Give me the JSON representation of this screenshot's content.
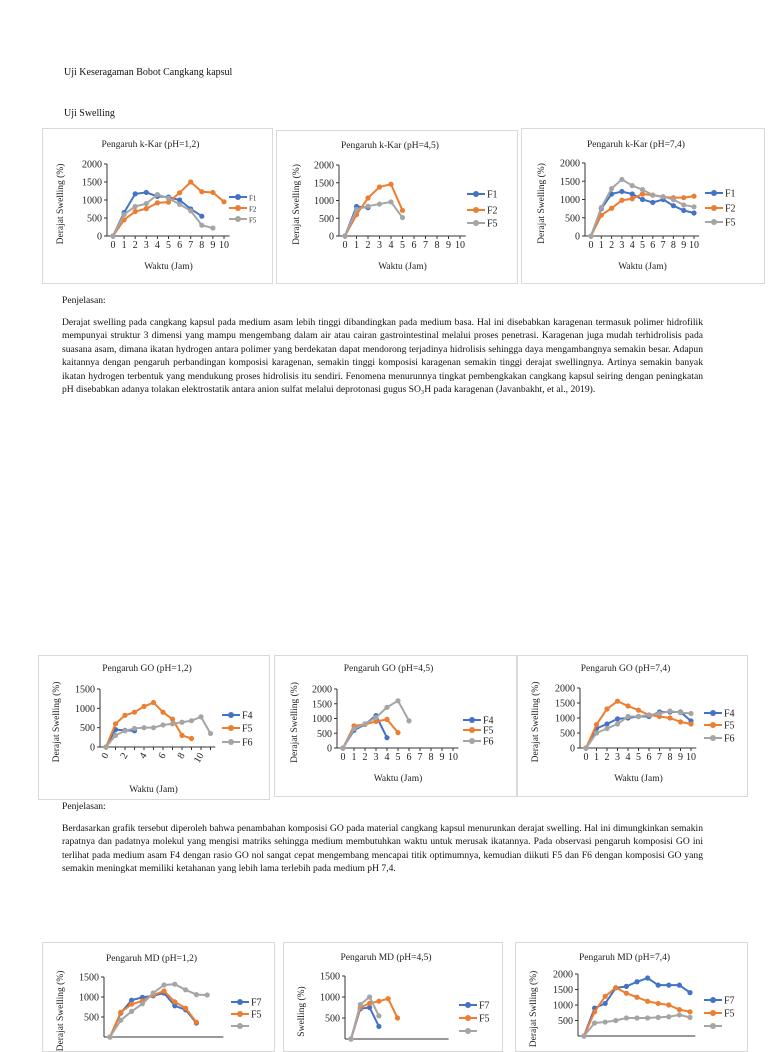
{
  "document": {
    "heading_uniformity": "Uji Keseragaman Bobot Cangkang kapsul",
    "heading_swelling": "Uji Swelling",
    "explanation_label_1": "Penjelasan:",
    "paragraph_1": "Derajat swelling pada cangkang kapsul pada medium asam lebih tinggi dibandingkan pada medium basa. Hal ini disebabkan karagenan termasuk polimer hidrofilik mempunyai struktur 3 dimensi yang mampu mengembang dalam air atau cairan gastrointestinal melalui proses penetrasi. Karagenan juga mudah terhidrolisis pada suasana asam, dimana ikatan hydrogen antara polimer yang berdekatan dapat mendorong terjadinya hidrolisis sehingga daya mengambangnya semakin besar. Adapun kaitannya dengan pengaruh perbandingan komposisi karagenan, semakin tinggi komposisi karagenan semakin tinggi derajat swellingnya. Artinya semakin banyak ikatan hydrogen terbentuk yang mendukung proses hidrolisis itu sendiri. Fenomena menurunnya tingkat pembengkakan cangkang kapsul seiring dengan peningkatan pH disebabkan adanya tolakan elektrostatik antara anion sulfat melalui deprotonasi gugus SO₃H pada karagenan (Javanbakht, et al., 2019).",
    "explanation_label_2": "Penjelasan:",
    "paragraph_2": "Berdasarkan grafik tersebut diperoleh bahwa penambahan komposisi GO pada material cangkang kapsul menurunkan derajat swelling. Hal ini dimungkinkan semakin rapatnya dan padatnya molekul yang mengisi matriks sehingga medium membutuhkan waktu untuk merusak ikatannya. Pada observasi pengaruh komposisi GO ini terlihat pada medium asam F4 dengan rasio GO nol sangat cepat mengembang mencapai titik optimumnya, kemudian diikuti F5 dan F6 dengan komposisi GO yang semakin meningkat memiliki ketahanan yang lebih lama terlebih pada medium pH 7,4."
  },
  "colors": {
    "blue": "#4472c4",
    "orange": "#ed7d31",
    "gray": "#a5a5a5"
  },
  "chart_data": [
    {
      "type": "line",
      "title": "Pengaruh k-Kar (pH=1,2)",
      "xlabel": "Waktu (Jam)",
      "ylabel": "Derajat Swelling (%)",
      "ylim": [
        0,
        2000
      ],
      "yticks": [
        "0",
        "500",
        "1000",
        "1500",
        "2000"
      ],
      "xticks": [
        "0",
        "1",
        "2",
        "3",
        "4",
        "5",
        "6",
        "7",
        "8",
        "9",
        "10"
      ],
      "legend": "right",
      "grid": false,
      "series": [
        {
          "name": "F1",
          "color": "#4472c4",
          "values": [
            0,
            650,
            1170,
            1210,
            1100,
            1080,
            1000,
            750,
            550
          ]
        },
        {
          "name": "F2",
          "color": "#ed7d31",
          "values": [
            0,
            450,
            680,
            760,
            920,
            940,
            1200,
            1500,
            1230,
            1210,
            950
          ]
        },
        {
          "name": "F5",
          "color": "#a5a5a5",
          "values": [
            0,
            600,
            820,
            900,
            1150,
            1050,
            880,
            700,
            300,
            220
          ]
        }
      ]
    },
    {
      "type": "line",
      "title": "Pengaruh k-Kar (pH=4,5)",
      "xlabel": "Waktu (Jam)",
      "ylabel": "Derajat Swelling (%)",
      "ylim": [
        0,
        2000
      ],
      "yticks": [
        "0",
        "500",
        "1000",
        "1500",
        "2000"
      ],
      "xticks": [
        "0",
        "1",
        "2",
        "3",
        "4",
        "5",
        "6",
        "7",
        "8",
        "9",
        "10"
      ],
      "legend": "right",
      "grid": false,
      "series": [
        {
          "name": "F1",
          "color": "#4472c4",
          "values": [
            0,
            830,
            800
          ]
        },
        {
          "name": "F2",
          "color": "#ed7d31",
          "values": [
            0,
            600,
            1070,
            1380,
            1460,
            720
          ]
        },
        {
          "name": "F5",
          "color": "#a5a5a5",
          "values": [
            0,
            750,
            840,
            900,
            960,
            520
          ]
        }
      ]
    },
    {
      "type": "line",
      "title": "Pengaruh k-Kar (pH=7,4)",
      "xlabel": "Waktu (Jam)",
      "ylabel": "Derajat Swelling (%)",
      "ylim": [
        0,
        2000
      ],
      "yticks": [
        "0",
        "500",
        "1000",
        "1500",
        "2000"
      ],
      "xticks": [
        "0",
        "1",
        "2",
        "3",
        "4",
        "5",
        "6",
        "7",
        "8",
        "9",
        "10"
      ],
      "legend": "right",
      "grid": false,
      "series": [
        {
          "name": "F1",
          "color": "#4472c4",
          "values": [
            0,
            750,
            1150,
            1220,
            1150,
            1000,
            920,
            1000,
            830,
            700,
            630
          ]
        },
        {
          "name": "F2",
          "color": "#ed7d31",
          "values": [
            0,
            570,
            760,
            980,
            1020,
            1150,
            1120,
            1070,
            1050,
            1050,
            1090
          ]
        },
        {
          "name": "F5",
          "color": "#a5a5a5",
          "values": [
            0,
            780,
            1300,
            1550,
            1380,
            1270,
            1120,
            1080,
            1000,
            850,
            800
          ]
        }
      ]
    },
    {
      "type": "line",
      "title": "Pengaruh GO (pH=1,2)",
      "xlabel": "Waktu (Jam)",
      "ylabel": "Derajat Swelling (%)",
      "ylim": [
        0,
        1500
      ],
      "yticks": [
        "0",
        "500",
        "1000",
        "1500"
      ],
      "xticks": [
        "0",
        "",
        "2",
        "",
        "4",
        "",
        "6",
        "",
        "8",
        "",
        "10",
        ""
      ],
      "legend": "right",
      "grid": false,
      "series": [
        {
          "name": "F4",
          "color": "#4472c4",
          "values": [
            0,
            450,
            430,
            420
          ]
        },
        {
          "name": "F5",
          "color": "#ed7d31",
          "values": [
            0,
            600,
            820,
            900,
            1050,
            1150,
            900,
            720,
            300,
            220
          ]
        },
        {
          "name": "F6",
          "color": "#a5a5a5",
          "values": [
            0,
            300,
            420,
            480,
            500,
            500,
            570,
            600,
            640,
            680,
            780,
            350
          ]
        }
      ]
    },
    {
      "type": "line",
      "title": "Pengaruh GO (pH=4,5)",
      "xlabel": "Waktu (Jam)",
      "ylabel": "Derajat Swelling (%)",
      "ylim": [
        0,
        2000
      ],
      "yticks": [
        "0",
        "500",
        "1000",
        "1500",
        "2000"
      ],
      "xticks": [
        "0",
        "1",
        "2",
        "3",
        "4",
        "5",
        "6",
        "7",
        "8",
        "9",
        "10"
      ],
      "legend": "right",
      "grid": false,
      "series": [
        {
          "name": "F4",
          "color": "#4472c4",
          "values": [
            0,
            600,
            800,
            1100,
            350
          ]
        },
        {
          "name": "F5",
          "color": "#ed7d31",
          "values": [
            0,
            750,
            800,
            900,
            970,
            520
          ]
        },
        {
          "name": "F6",
          "color": "#a5a5a5",
          "values": [
            0,
            650,
            820,
            1030,
            1380,
            1600,
            920
          ]
        }
      ]
    },
    {
      "type": "line",
      "title": "Pengaruh GO (pH=7,4)",
      "xlabel": "Waktu (Jam)",
      "ylabel": "Derajat Swelling (%)",
      "ylim": [
        0,
        2000
      ],
      "yticks": [
        "0",
        "500",
        "1000",
        "1500",
        "2000"
      ],
      "xticks": [
        "0",
        "1",
        "2",
        "3",
        "4",
        "5",
        "6",
        "7",
        "8",
        "9",
        "10"
      ],
      "legend": "right",
      "grid": false,
      "series": [
        {
          "name": "F4",
          "color": "#4472c4",
          "values": [
            0,
            650,
            800,
            970,
            1000,
            1050,
            1050,
            1200,
            1200,
            1200,
            900
          ]
        },
        {
          "name": "F5",
          "color": "#ed7d31",
          "values": [
            0,
            780,
            1300,
            1560,
            1400,
            1260,
            1100,
            1050,
            1000,
            870,
            800
          ]
        },
        {
          "name": "F6",
          "color": "#a5a5a5",
          "values": [
            0,
            500,
            650,
            800,
            1050,
            1050,
            1100,
            1150,
            1230,
            1180,
            1150
          ]
        }
      ]
    },
    {
      "type": "line",
      "title": "Pengaruh MD (pH=1,2)",
      "ylabel": "Derajat Swelling (%)",
      "ylim": [
        0,
        1500
      ],
      "yticks": [
        "500",
        "1000",
        "1500"
      ],
      "legend": "right",
      "grid": false,
      "series": [
        {
          "name": "F7",
          "color": "#4472c4",
          "values": [
            0,
            600,
            920,
            990,
            1030,
            1100,
            780,
            680,
            350
          ]
        },
        {
          "name": "F5",
          "color": "#ed7d31",
          "values": [
            0,
            620,
            820,
            900,
            1050,
            1150,
            880,
            720,
            370
          ]
        },
        {
          "name": "",
          "color": "#a5a5a5",
          "values": [
            0,
            420,
            640,
            830,
            1100,
            1300,
            1320,
            1180,
            1060,
            1050
          ]
        }
      ]
    },
    {
      "type": "line",
      "title": "Pengaruh MD (pH=4,5)",
      "ylabel": "Swelling (%)",
      "ylim": [
        0,
        1500
      ],
      "yticks": [
        "500",
        "1000",
        "1500"
      ],
      "legend": "right",
      "grid": false,
      "series": [
        {
          "name": "F7",
          "color": "#4472c4",
          "values": [
            0,
            720,
            750,
            300
          ]
        },
        {
          "name": "F5",
          "color": "#ed7d31",
          "values": [
            0,
            750,
            850,
            900,
            960,
            500
          ]
        },
        {
          "name": "",
          "color": "#a5a5a5",
          "values": [
            0,
            820,
            1000,
            550
          ]
        }
      ]
    },
    {
      "type": "line",
      "title": "Pengaruh MD (pH=7,4)",
      "ylabel": "Derajat Swlling (%)",
      "ylim": [
        0,
        2000
      ],
      "yticks": [
        "500",
        "1000",
        "1500",
        "2000"
      ],
      "legend": "right",
      "grid": false,
      "series": [
        {
          "name": "F7",
          "color": "#4472c4",
          "values": [
            0,
            900,
            1050,
            1550,
            1600,
            1750,
            1870,
            1640,
            1640,
            1640,
            1400
          ]
        },
        {
          "name": "F5",
          "color": "#ed7d31",
          "values": [
            0,
            780,
            1280,
            1560,
            1380,
            1250,
            1120,
            1050,
            1000,
            850,
            780
          ]
        },
        {
          "name": "",
          "color": "#a5a5a5",
          "values": [
            0,
            420,
            450,
            500,
            580,
            580,
            580,
            600,
            620,
            680,
            600
          ]
        }
      ]
    }
  ]
}
